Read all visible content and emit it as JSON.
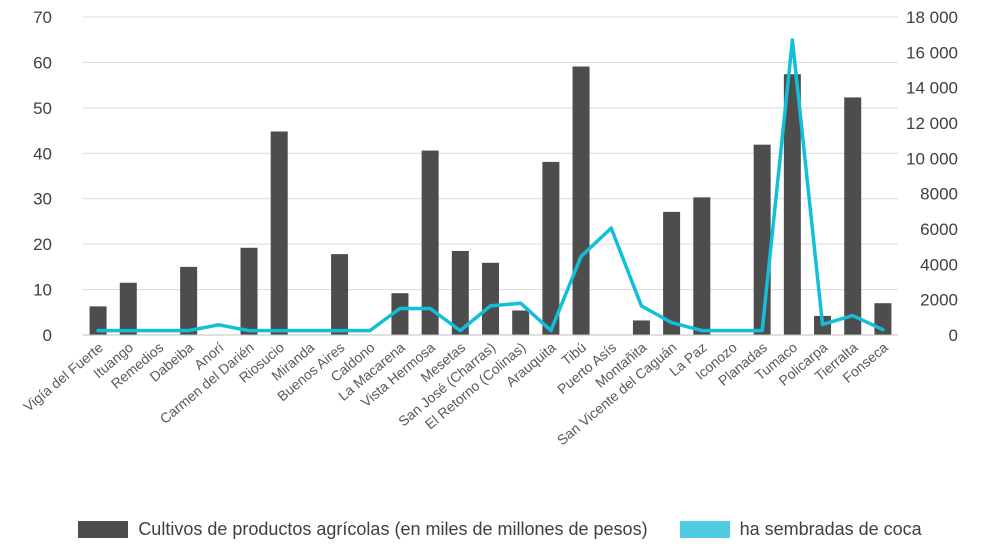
{
  "chart_data": {
    "type": "bar",
    "categories": [
      "Vigía del Fuerte",
      "Ituango",
      "Remedios",
      "Dabeiba",
      "Anorí",
      "Carmen del Darién",
      "Riosucio",
      "Miranda",
      "Buenos Aires",
      "Caldono",
      "La Macarena",
      "Vista Hermosa",
      "Mesetas",
      "San José (Charras)",
      "El Retorno (Colinas)",
      "Arauquita",
      "Tibú",
      "Puerto Asís",
      "Montañita",
      "San Vicente del Caguán",
      "La Paz",
      "Iconozo",
      "Planadas",
      "Tumaco",
      "Policarpa",
      "Tierralta",
      "Fonseca"
    ],
    "series": [
      {
        "name": "Cultivos de productos agrícolas (en miles de millones de pesos)",
        "type": "bar",
        "axis": "left",
        "color": "#4d4d4d",
        "values": [
          6.3,
          11.5,
          0,
          15,
          0,
          19.2,
          44.8,
          0,
          17.8,
          0,
          9.2,
          40.6,
          18.5,
          15.9,
          5.4,
          38.1,
          59.1,
          0,
          3.2,
          27.1,
          30.3,
          0,
          41.9,
          57.4,
          4.2,
          52.3,
          7
        ]
      },
      {
        "name": "ha sembradas de coca",
        "type": "line",
        "axis": "right",
        "color": "#12bfd8",
        "values": [
          250,
          250,
          250,
          250,
          580,
          250,
          250,
          250,
          250,
          250,
          1500,
          1500,
          250,
          1650,
          1800,
          250,
          4450,
          6050,
          1650,
          700,
          250,
          250,
          250,
          16700,
          600,
          1100,
          300
        ]
      }
    ],
    "y_left": {
      "ticks": [
        "0",
        "10",
        "20",
        "30",
        "40",
        "50",
        "60",
        "70"
      ],
      "ylim": [
        0,
        70
      ]
    },
    "y_right": {
      "ticks": [
        "0",
        "2000",
        "4000",
        "6000",
        "8000",
        "10 000",
        "12 000",
        "14 000",
        "16 000",
        "18 000"
      ],
      "ylim": [
        0,
        18000
      ]
    },
    "grid": true,
    "legend_position": "bottom",
    "title": "",
    "xlabel": "",
    "ylabel": ""
  }
}
